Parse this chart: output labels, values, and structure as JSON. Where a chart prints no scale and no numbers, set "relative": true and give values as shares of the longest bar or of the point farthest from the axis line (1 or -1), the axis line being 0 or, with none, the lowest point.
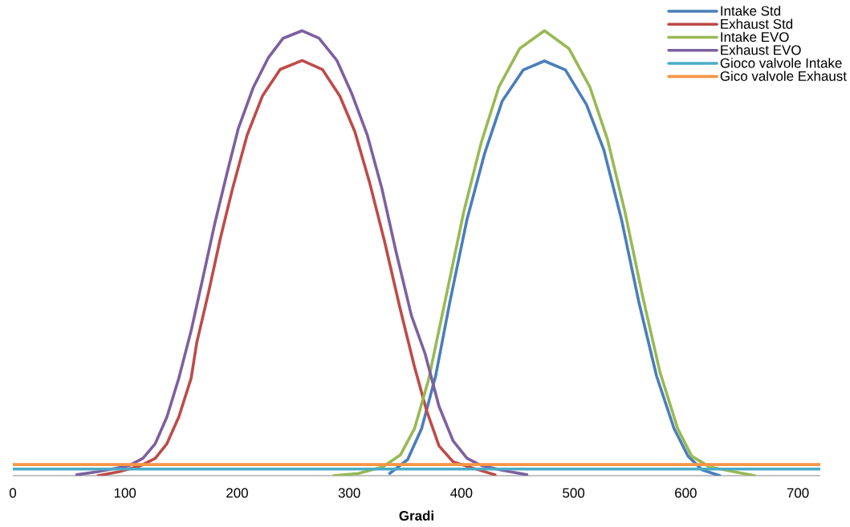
{
  "chart_data": {
    "type": "line",
    "relative": true,
    "xlabel": "Gradi",
    "xlim": [
      0,
      720
    ],
    "xticks": [
      0,
      100,
      200,
      300,
      400,
      500,
      600,
      700
    ],
    "legend": "top right",
    "series": [
      {
        "name": "Intake Std",
        "color": "#4a7ebb",
        "x": [
          336,
          352,
          364.5,
          377,
          389.5,
          405,
          420.8,
          436.4,
          455.2,
          474,
          492.7,
          511.5,
          527,
          542.7,
          558.4,
          574,
          589.6,
          602.1,
          614.6,
          630.3
        ],
        "values": [
          0.005,
          0.036,
          0.106,
          0.224,
          0.388,
          0.576,
          0.725,
          0.842,
          0.912,
          0.932,
          0.912,
          0.834,
          0.732,
          0.576,
          0.388,
          0.224,
          0.106,
          0.044,
          0.013,
          0
        ]
      },
      {
        "name": "Exhaust Std",
        "color": "#be4b48",
        "x": [
          76,
          95,
          113.5,
          127,
          137.4,
          148,
          159,
          164,
          174.6,
          185,
          196,
          209,
          222.5,
          238.4,
          258,
          276,
          291.6,
          305,
          318,
          331.5,
          345,
          358,
          369,
          380,
          392.6,
          411.4,
          430
        ],
        "values": [
          0,
          0.009,
          0.022,
          0.039,
          0.072,
          0.132,
          0.219,
          0.299,
          0.413,
          0.533,
          0.646,
          0.766,
          0.853,
          0.913,
          0.933,
          0.913,
          0.853,
          0.773,
          0.66,
          0.526,
          0.379,
          0.246,
          0.146,
          0.067,
          0.031,
          0.016,
          0.002
        ]
      },
      {
        "name": "Intake EVO",
        "color": "#98b954",
        "x": [
          286,
          308.2,
          330,
          345.7,
          358.2,
          370.7,
          386.4,
          402,
          417.6,
          433.3,
          452,
          474,
          495.8,
          514.6,
          530.2,
          545.9,
          561.5,
          577.1,
          592.8,
          605.3,
          620.9,
          642.8,
          661.5
        ],
        "values": [
          0,
          0.005,
          0.02,
          0.047,
          0.106,
          0.216,
          0.404,
          0.592,
          0.748,
          0.873,
          0.96,
          1,
          0.96,
          0.873,
          0.756,
          0.592,
          0.404,
          0.232,
          0.106,
          0.044,
          0.02,
          0.009,
          0
        ]
      },
      {
        "name": "Exhaust EVO",
        "color": "#7d60a0",
        "x": [
          57,
          76,
          103,
          116,
          127,
          137.4,
          148,
          159,
          169,
          180,
          191,
          201,
          214.5,
          228,
          241,
          258,
          273,
          289,
          302,
          316,
          329,
          342,
          355.4,
          367.6,
          380,
          392.6,
          405,
          417.6,
          436.4,
          458.3
        ],
        "values": [
          0.002,
          0.009,
          0.022,
          0.039,
          0.072,
          0.132,
          0.219,
          0.326,
          0.439,
          0.566,
          0.68,
          0.78,
          0.873,
          0.94,
          0.983,
          1,
          0.983,
          0.933,
          0.86,
          0.766,
          0.646,
          0.5,
          0.36,
          0.274,
          0.156,
          0.078,
          0.039,
          0.023,
          0.012,
          0.002
        ]
      },
      {
        "name": "Gioco valvole Intake",
        "color": "#4bacc6",
        "x": [
          0,
          720
        ],
        "values": [
          0.015,
          0.015
        ]
      },
      {
        "name": "Gico valvole Exhaust",
        "color": "#f79646",
        "x": [
          0,
          720
        ],
        "values": [
          0.025,
          0.025
        ]
      }
    ]
  }
}
